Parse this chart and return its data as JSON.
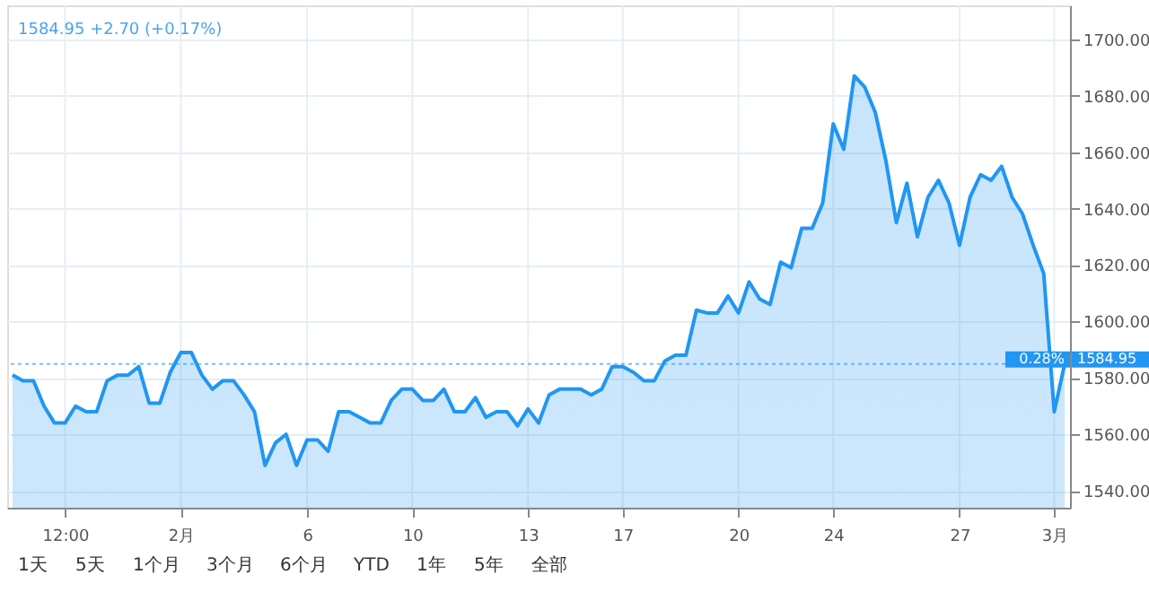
{
  "chart_data": {
    "type": "area",
    "title": "1584.95 +2.70 (+0.17%)",
    "categories": [
      null,
      null,
      null,
      null,
      null,
      "12:00",
      null,
      null,
      null,
      null,
      null,
      null,
      null,
      null,
      null,
      null,
      "2月",
      null,
      null,
      null,
      null,
      null,
      null,
      null,
      null,
      null,
      null,
      null,
      "6",
      null,
      null,
      null,
      null,
      null,
      null,
      null,
      null,
      null,
      "10",
      null,
      null,
      null,
      null,
      null,
      null,
      null,
      null,
      null,
      null,
      "13",
      null,
      null,
      null,
      null,
      null,
      null,
      null,
      null,
      "17",
      null,
      null,
      null,
      null,
      null,
      null,
      null,
      null,
      null,
      null,
      "20",
      null,
      null,
      null,
      null,
      null,
      null,
      null,
      null,
      "24",
      null,
      null,
      null,
      null,
      null,
      null,
      null,
      null,
      null,
      null,
      null,
      "27",
      null,
      null,
      null,
      null,
      null,
      null,
      null,
      null,
      "3月",
      null
    ],
    "series": [
      {
        "color": "#2196f3",
        "values": [
          1581,
          1579,
          1579,
          1570,
          1564,
          1564,
          1570,
          1568,
          1568,
          1579,
          1581,
          1581,
          1584,
          1571,
          1571,
          1582,
          1589,
          1589,
          1581,
          1576,
          1579,
          1579,
          1574,
          1568,
          1549,
          1557,
          1560,
          1549,
          1558,
          1558,
          1554,
          1568,
          1568,
          1566,
          1564,
          1564,
          1572,
          1576,
          1576,
          1572,
          1572,
          1576,
          1568,
          1568,
          1573,
          1566,
          1568,
          1568,
          1563,
          1569,
          1564,
          1574,
          1576,
          1576,
          1576,
          1574,
          1576,
          1584,
          1584,
          1582,
          1579,
          1579,
          1586,
          1588,
          1588,
          1604,
          1603,
          1603,
          1609,
          1603,
          1614,
          1608,
          1606,
          1621,
          1619,
          1633,
          1633,
          1642,
          1670,
          1661,
          1687,
          1683,
          1674,
          1657,
          1635,
          1649,
          1630,
          1644,
          1650,
          1642,
          1627,
          1644,
          1652,
          1650,
          1655,
          1644,
          1638,
          1627,
          1617,
          1568,
          1585
        ]
      }
    ],
    "ylim": [
      1534,
      1712
    ],
    "yticks": [
      {
        "value": 1540,
        "label": "1540.00"
      },
      {
        "value": 1560,
        "label": "1560.00"
      },
      {
        "value": 1580,
        "label": "1580.00"
      },
      {
        "value": 1600,
        "label": "1600.00"
      },
      {
        "value": 1620,
        "label": "1620.00"
      },
      {
        "value": 1640,
        "label": "1640.00"
      },
      {
        "value": 1660,
        "label": "1660.00"
      },
      {
        "value": 1680,
        "label": "1680.00"
      },
      {
        "value": 1700,
        "label": "1700.00"
      }
    ],
    "ref_lines": [
      {
        "axis": "y",
        "value": 1584.95,
        "label": "1584.95",
        "color": "#2196f3",
        "line_style": "dotted"
      }
    ],
    "annotations": [
      {
        "text": "0.28%",
        "y": 1584.95
      },
      "1天",
      "5天",
      "1个月",
      "3个月",
      "6个月",
      "YTD",
      "1年",
      "5年",
      "全部"
    ],
    "grid": true,
    "marker": "none",
    "line_style": "solid"
  }
}
